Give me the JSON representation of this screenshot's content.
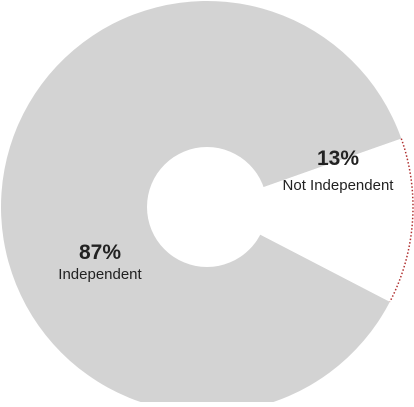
{
  "chart_data": {
    "type": "pie",
    "title": "",
    "categories": [
      "Independent",
      "Not Independent"
    ],
    "values": [
      87,
      13
    ],
    "labels": {
      "Independent": {
        "percent_text": "87%",
        "name_text": "Independent"
      },
      "Not Independent": {
        "percent_text": "13%",
        "name_text": "Not Independent"
      }
    },
    "colors": {
      "Independent": "#d3d3d3",
      "Not Independent": "#ffffff",
      "highlight_edge": "#b03030",
      "text": "#222222"
    },
    "donut": true
  }
}
